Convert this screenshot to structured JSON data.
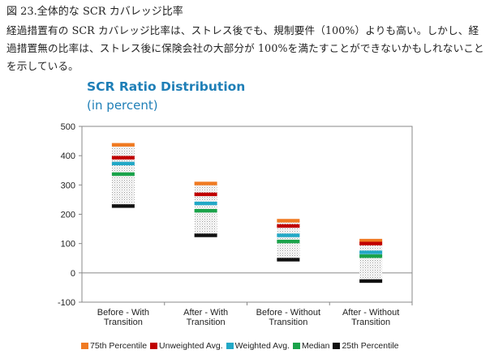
{
  "doc": {
    "figure_heading": "図 23.全体的な SCR カバレッジ比率",
    "paragraph": "経過措置有の SCR カバレッジ比率は、ストレス後でも、規制要件（100%）よりも高い。しかし、経過措置無の比率は、ストレス後に保険会社の大部分が 100%を満たすことができないかもしれないことを示している。"
  },
  "chart_data": {
    "type": "box",
    "title": "SCR Ratio Distribution",
    "subtitle": "(in percent)",
    "ylim": [
      -100,
      500
    ],
    "yticks": [
      -100,
      0,
      100,
      200,
      300,
      400,
      500
    ],
    "categories": [
      [
        "Before - With",
        "Transition"
      ],
      [
        "After - With",
        "Transition"
      ],
      [
        "Before - Without",
        "Transition"
      ],
      [
        "After - Without",
        "Transition"
      ]
    ],
    "series": [
      {
        "name": "75th Percentile",
        "color": "#f07a22",
        "values": [
          437,
          305,
          178,
          110
        ]
      },
      {
        "name": "Unweighted Avg.",
        "color": "#c00000",
        "values": [
          393,
          268,
          160,
          100
        ]
      },
      {
        "name": "Weighted Avg.",
        "color": "#22a8c6",
        "values": [
          373,
          237,
          128,
          70
        ]
      },
      {
        "name": "Median",
        "color": "#1aa34a",
        "values": [
          337,
          212,
          107,
          57
        ]
      },
      {
        "name": "25th Percentile",
        "color": "#111111",
        "values": [
          228,
          128,
          45,
          -28
        ]
      }
    ],
    "grid": false,
    "legend_position": "bottom"
  }
}
